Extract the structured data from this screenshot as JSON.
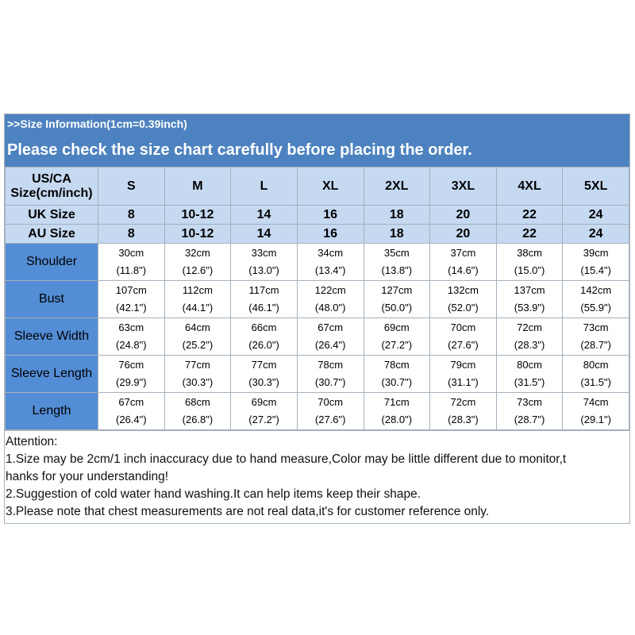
{
  "banner": {
    "subtitle": ">>Size Information(1cm=0.39inch)",
    "title": "Please check the size chart carefully before placing the order."
  },
  "header": {
    "us_label_line1": "US/CA",
    "us_label_line2": "Size(cm/inch)",
    "sizes": [
      "S",
      "M",
      "L",
      "XL",
      "2XL",
      "3XL",
      "4XL",
      "5XL"
    ],
    "uk_label": "UK Size",
    "uk_sizes": [
      "8",
      "10-12",
      "14",
      "16",
      "18",
      "20",
      "22",
      "24"
    ],
    "au_label": "AU Size",
    "au_sizes": [
      "8",
      "10-12",
      "14",
      "16",
      "18",
      "20",
      "22",
      "24"
    ]
  },
  "rows": [
    {
      "label": "Shoulder",
      "cm": [
        "30cm",
        "32cm",
        "33cm",
        "34cm",
        "35cm",
        "37cm",
        "38cm",
        "39cm"
      ],
      "inch": [
        "(11.8\")",
        "(12.6\")",
        "(13.0\")",
        "(13.4\")",
        "(13.8\")",
        "(14.6\")",
        "(15.0\")",
        "(15.4\")"
      ]
    },
    {
      "label": "Bust",
      "cm": [
        "107cm",
        "112cm",
        "117cm",
        "122cm",
        "127cm",
        "132cm",
        "137cm",
        "142cm"
      ],
      "inch": [
        "(42.1\")",
        "(44.1\")",
        "(46.1\")",
        "(48.0\")",
        "(50.0\")",
        "(52.0\")",
        "(53.9\")",
        "(55.9\")"
      ]
    },
    {
      "label": "Sleeve Width",
      "cm": [
        "63cm",
        "64cm",
        "66cm",
        "67cm",
        "69cm",
        "70cm",
        "72cm",
        "73cm"
      ],
      "inch": [
        "(24.8\")",
        "(25.2\")",
        "(26.0\")",
        "(26.4\")",
        "(27.2\")",
        "(27.6\")",
        "(28.3\")",
        "(28.7\")"
      ]
    },
    {
      "label": "Sleeve Length",
      "cm": [
        "76cm",
        "77cm",
        "77cm",
        "78cm",
        "78cm",
        "79cm",
        "80cm",
        "80cm"
      ],
      "inch": [
        "(29.9\")",
        "(30.3\")",
        "(30.3\")",
        "(30.7\")",
        "(30.7\")",
        "(31.1\")",
        "(31.5\")",
        "(31.5\")"
      ]
    },
    {
      "label": "Length",
      "cm": [
        "67cm",
        "68cm",
        "69cm",
        "70cm",
        "71cm",
        "72cm",
        "73cm",
        "74cm"
      ],
      "inch": [
        "(26.4\")",
        "(26.8\")",
        "(27.2\")",
        "(27.6\")",
        "(28.0\")",
        "(28.3\")",
        "(28.7\")",
        "(29.1\")"
      ]
    }
  ],
  "notes": {
    "heading": "Attention:",
    "lines": [
      "1.Size may be 2cm/1 inch inaccuracy due to hand measure,Color may be little different due to monitor,t",
      "hanks for your understanding!",
      "2.Suggestion of cold water hand washing.It can help items keep their shape.",
      "3.Please note that chest measurements are not real data,it's for customer reference only."
    ]
  },
  "colors": {
    "banner": "#4d82c0",
    "header_cells": "#c5d9f1",
    "label_cells": "#538dd5"
  }
}
